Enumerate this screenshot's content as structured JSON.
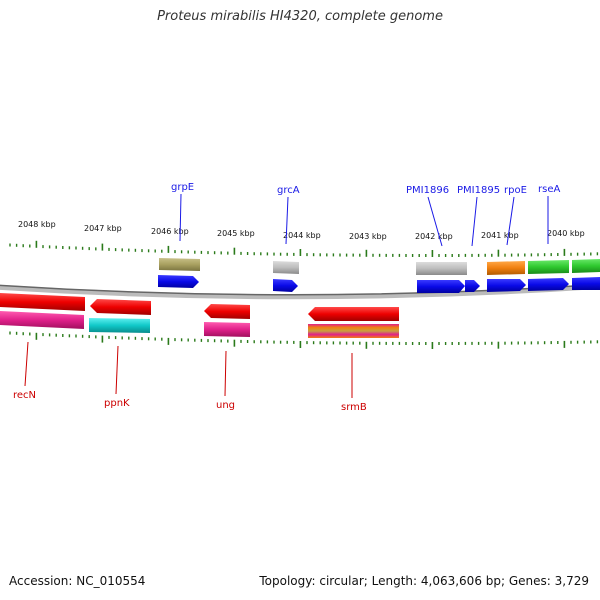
{
  "title": "Proteus mirabilis HI4320, complete genome",
  "footer": {
    "accession": "Accession: NC_010554",
    "summary": "Topology: circular; Length: 4,063,606 bp; Genes: 3,729"
  },
  "scale_labels": [
    "2048 kbp",
    "2047 kbp",
    "2046 kbp",
    "2045 kbp",
    "2044 kbp",
    "2043 kbp",
    "2042 kbp",
    "2041 kbp",
    "2040 kbp"
  ],
  "genes_top": [
    {
      "name": "grpE",
      "color": "#1a1ae6"
    },
    {
      "name": "grcA",
      "color": "#1a1ae6"
    },
    {
      "name": "PMI1896",
      "color": "#1a1ae6"
    },
    {
      "name": "PMI1895",
      "color": "#1a1ae6"
    },
    {
      "name": "rpoE",
      "color": "#1a1ae6"
    },
    {
      "name": "rseA",
      "color": "#1a1ae6"
    }
  ],
  "genes_bottom": [
    {
      "name": "recN",
      "color": "#cc0000"
    },
    {
      "name": "ppnK",
      "color": "#cc0000"
    },
    {
      "name": "ung",
      "color": "#cc0000"
    },
    {
      "name": "srmB",
      "color": "#cc0000"
    }
  ],
  "colors": {
    "forward_cds": "#0a0ae8",
    "reverse_cds": "#ee0000",
    "tick": "#2a7a1a",
    "backbone": "#777777",
    "feature_olive": "#a8a060",
    "feature_gray": "#bdbdbd",
    "feature_orange": "#f08010",
    "feature_green": "#2ec82e",
    "feature_magenta": "#e0208a",
    "feature_cyan": "#10c8c8"
  }
}
